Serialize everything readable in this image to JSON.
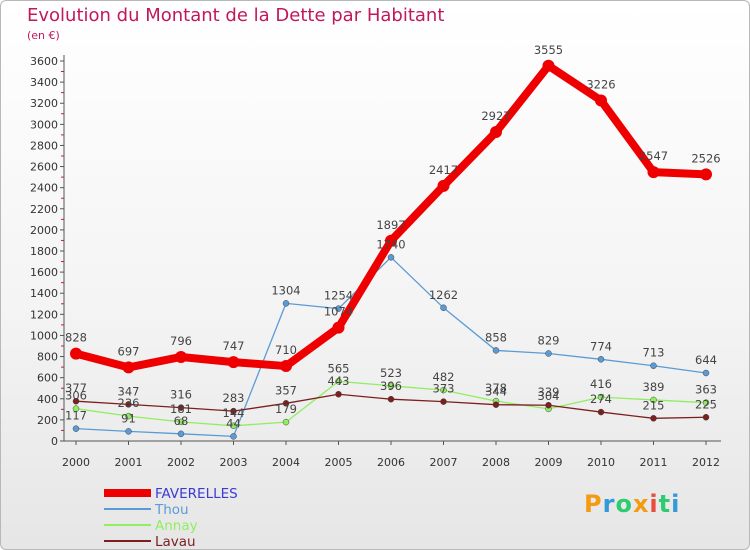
{
  "title": "Evolution du Montant de la Dette par Habitant",
  "subtitle": "(en €)",
  "logo": "Proxiti",
  "colors": {
    "title": "#c2185b",
    "axis": "#555555",
    "tick_minor": "#c2185b"
  },
  "chart_data": {
    "type": "line",
    "categories": [
      "2000",
      "2001",
      "2002",
      "2003",
      "2004",
      "2005",
      "2006",
      "2007",
      "2008",
      "2009",
      "2010",
      "2011",
      "2012"
    ],
    "ylim": [
      0,
      3600
    ],
    "yticks": [
      0,
      200,
      400,
      600,
      800,
      1000,
      1200,
      1400,
      1600,
      1800,
      2000,
      2200,
      2400,
      2600,
      2800,
      3000,
      3200,
      3400,
      3600
    ],
    "grid": false,
    "legend": "bottom-left",
    "series": [
      {
        "name": "FAVERELLES",
        "color": "#ee0000",
        "width": 8,
        "marker": 6,
        "labels": [
          "828",
          "697",
          "796",
          "747",
          "710",
          "1074",
          "1897",
          "2417",
          "2927",
          "3555",
          "3226",
          "2547",
          "2526"
        ],
        "values": [
          828,
          697,
          796,
          747,
          710,
          1074,
          1897,
          2417,
          2927,
          3555,
          3226,
          2547,
          2526
        ]
      },
      {
        "name": "Thou",
        "color": "#5b9bd5",
        "width": 1.3,
        "marker": 3,
        "labels": [
          "117",
          "91",
          "68",
          "44",
          "1304",
          "1254",
          "1740",
          "1262",
          "858",
          "829",
          "774",
          "713",
          "644"
        ],
        "values": [
          117,
          91,
          68,
          44,
          1304,
          1254,
          1740,
          1262,
          858,
          829,
          774,
          713,
          644
        ]
      },
      {
        "name": "Annay",
        "color": "#90ee60",
        "width": 1.3,
        "marker": 3,
        "labels": [
          "306",
          "236",
          "181",
          "144",
          "179",
          "565",
          "523",
          "482",
          "378",
          "304",
          "416",
          "389",
          "363"
        ],
        "values": [
          306,
          236,
          181,
          144,
          179,
          565,
          523,
          482,
          378,
          304,
          416,
          389,
          363
        ]
      },
      {
        "name": "Lavau",
        "color": "#7b1f1f",
        "width": 1.3,
        "marker": 3,
        "labels": [
          "377",
          "347",
          "316",
          "283",
          "357",
          "443",
          "396",
          "373",
          "344",
          "339",
          "274",
          "215",
          "225"
        ],
        "values": [
          377,
          347,
          316,
          283,
          357,
          443,
          396,
          373,
          344,
          339,
          274,
          215,
          225
        ]
      }
    ]
  }
}
